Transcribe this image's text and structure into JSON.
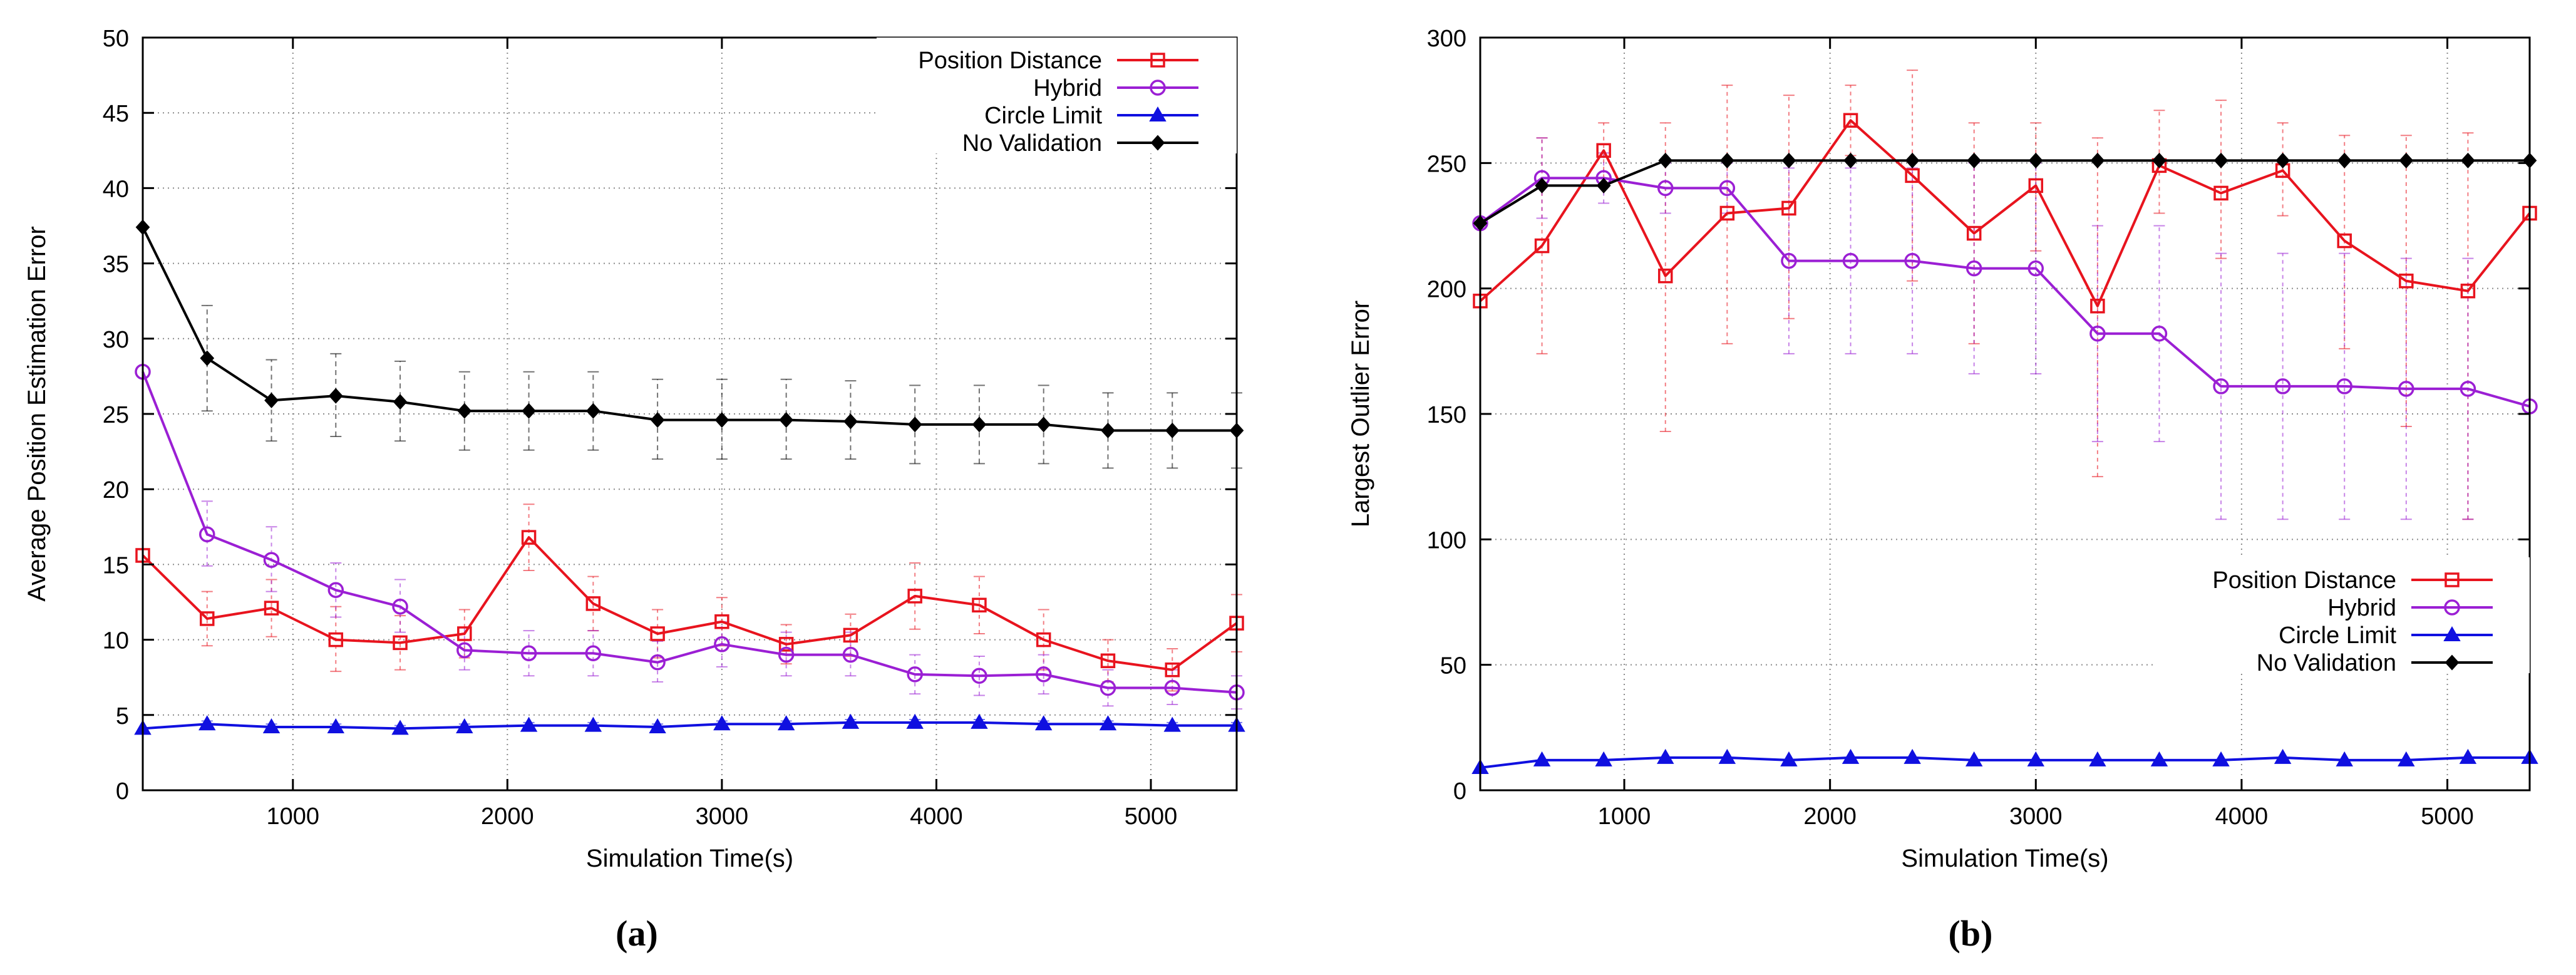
{
  "colors": {
    "position_distance": "#e8141e",
    "hybrid": "#9b1fd4",
    "circle_limit": "#1010e0",
    "no_validation": "#000000",
    "grid": "#8a8a8a"
  },
  "chart_data": [
    {
      "type": "line",
      "panel_label": "(a)",
      "xlabel": "Simulation Time(s)",
      "ylabel": "Average Position Estimation Error",
      "xlim": [
        300,
        5400
      ],
      "ylim": [
        0,
        50
      ],
      "xticks": [
        1000,
        2000,
        3000,
        4000,
        5000
      ],
      "yticks": [
        0,
        5,
        10,
        15,
        20,
        25,
        30,
        35,
        40,
        45,
        50
      ],
      "grid": true,
      "legend_position": "top-right",
      "x": [
        300,
        600,
        900,
        1200,
        1500,
        1800,
        2100,
        2400,
        2700,
        3000,
        3300,
        3600,
        3900,
        4200,
        4500,
        4800,
        5100,
        5400
      ],
      "series": [
        {
          "name": "Position Distance",
          "color_key": "position_distance",
          "marker": "square",
          "values": [
            15.6,
            11.4,
            12.1,
            10.0,
            9.8,
            10.4,
            16.8,
            12.4,
            10.4,
            11.2,
            9.7,
            10.3,
            12.9,
            12.3,
            10.0,
            8.6,
            8.0,
            11.1
          ],
          "err_low": [
            15.6,
            9.6,
            10.2,
            7.9,
            8.0,
            8.8,
            14.6,
            10.6,
            8.8,
            9.6,
            8.4,
            8.9,
            10.7,
            10.4,
            8.0,
            7.2,
            6.6,
            9.2
          ],
          "err_high": [
            15.6,
            13.2,
            14.0,
            12.2,
            11.6,
            12.0,
            19.0,
            14.2,
            12.0,
            12.8,
            11.0,
            11.7,
            15.1,
            14.2,
            12.0,
            10.0,
            9.4,
            13.0
          ]
        },
        {
          "name": "Hybrid",
          "color_key": "hybrid",
          "marker": "circle",
          "values": [
            27.8,
            17.0,
            15.3,
            13.3,
            12.2,
            9.3,
            9.1,
            9.1,
            8.5,
            9.7,
            9.0,
            9.0,
            7.7,
            7.6,
            7.7,
            6.8,
            6.8,
            6.5
          ],
          "err_low": [
            27.8,
            14.9,
            13.2,
            11.5,
            10.5,
            8.0,
            7.6,
            7.6,
            7.2,
            8.2,
            7.6,
            7.6,
            6.4,
            6.3,
            6.4,
            5.6,
            5.7,
            5.4
          ],
          "err_high": [
            27.8,
            19.2,
            17.5,
            15.1,
            14.0,
            10.8,
            10.6,
            10.6,
            9.9,
            11.2,
            10.5,
            10.5,
            9.0,
            8.9,
            9.0,
            8.0,
            8.0,
            7.6
          ]
        },
        {
          "name": "Circle Limit",
          "color_key": "circle_limit",
          "marker": "triangle",
          "values": [
            4.1,
            4.4,
            4.2,
            4.2,
            4.1,
            4.2,
            4.3,
            4.3,
            4.2,
            4.4,
            4.4,
            4.5,
            4.5,
            4.5,
            4.4,
            4.4,
            4.3,
            4.3
          ],
          "err_low": [
            4.1,
            4.2,
            4.0,
            4.0,
            3.9,
            4.0,
            4.1,
            4.1,
            4.0,
            4.2,
            4.2,
            4.3,
            4.3,
            4.3,
            4.2,
            4.2,
            4.1,
            4.1
          ],
          "err_high": [
            4.1,
            4.6,
            4.4,
            4.4,
            4.3,
            4.4,
            4.5,
            4.5,
            4.4,
            4.6,
            4.6,
            4.7,
            4.7,
            4.7,
            4.6,
            4.6,
            4.5,
            4.5
          ]
        },
        {
          "name": "No Validation",
          "color_key": "no_validation",
          "marker": "diamond",
          "values": [
            37.4,
            28.7,
            25.9,
            26.2,
            25.8,
            25.2,
            25.2,
            25.2,
            24.6,
            24.6,
            24.6,
            24.5,
            24.3,
            24.3,
            24.3,
            23.9,
            23.9,
            23.9
          ],
          "err_low": [
            37.4,
            25.2,
            23.2,
            23.5,
            23.2,
            22.6,
            22.6,
            22.6,
            22.0,
            22.0,
            22.0,
            22.0,
            21.7,
            21.7,
            21.7,
            21.4,
            21.4,
            21.4
          ],
          "err_high": [
            37.4,
            32.2,
            28.6,
            29.0,
            28.5,
            27.8,
            27.8,
            27.8,
            27.3,
            27.3,
            27.3,
            27.2,
            26.9,
            26.9,
            26.9,
            26.4,
            26.4,
            26.4
          ]
        }
      ]
    },
    {
      "type": "line",
      "panel_label": "(b)",
      "xlabel": "Simulation Time(s)",
      "ylabel": "Largest Outlier Error",
      "xlim": [
        300,
        5400
      ],
      "ylim": [
        0,
        300
      ],
      "xticks": [
        1000,
        2000,
        3000,
        4000,
        5000
      ],
      "yticks": [
        0,
        50,
        100,
        150,
        200,
        250,
        300
      ],
      "grid": true,
      "legend_position": "bottom-right",
      "x": [
        300,
        600,
        900,
        1200,
        1500,
        1800,
        2100,
        2400,
        2700,
        3000,
        3300,
        3600,
        3900,
        4200,
        4500,
        4800,
        5100,
        5400
      ],
      "series": [
        {
          "name": "Position Distance",
          "color_key": "position_distance",
          "marker": "square",
          "values": [
            195,
            217,
            255,
            205,
            230,
            232,
            267,
            245,
            222,
            241,
            193,
            249,
            238,
            247,
            219,
            203,
            199,
            230
          ],
          "err_low": [
            195,
            174,
            244,
            143,
            178,
            188,
            253,
            203,
            178,
            215,
            125,
            230,
            212,
            229,
            176,
            145,
            108,
            230
          ],
          "err_high": [
            195,
            260,
            266,
            266,
            281,
            277,
            281,
            287,
            266,
            266,
            260,
            271,
            275,
            266,
            261,
            261,
            262,
            230
          ]
        },
        {
          "name": "Hybrid",
          "color_key": "hybrid",
          "marker": "circle",
          "values": [
            226,
            244,
            244,
            240,
            240,
            211,
            211,
            211,
            208,
            208,
            182,
            182,
            161,
            161,
            161,
            160,
            160,
            153
          ],
          "err_low": [
            226,
            228,
            234,
            230,
            230,
            174,
            174,
            174,
            166,
            166,
            139,
            139,
            108,
            108,
            108,
            108,
            108,
            153
          ],
          "err_high": [
            226,
            260,
            254,
            250,
            250,
            248,
            248,
            248,
            250,
            250,
            225,
            225,
            214,
            214,
            214,
            212,
            212,
            153
          ]
        },
        {
          "name": "Circle Limit",
          "color_key": "circle_limit",
          "marker": "triangle",
          "values": [
            9,
            12,
            12,
            13,
            13,
            12,
            13,
            13,
            12,
            12,
            12,
            12,
            12,
            13,
            12,
            12,
            13,
            13
          ],
          "err_low": [
            9,
            12,
            12,
            13,
            13,
            12,
            13,
            13,
            12,
            12,
            12,
            12,
            12,
            13,
            12,
            12,
            13,
            13
          ],
          "err_high": [
            9,
            12,
            12,
            13,
            13,
            12,
            13,
            13,
            12,
            12,
            12,
            12,
            12,
            13,
            12,
            12,
            13,
            13
          ]
        },
        {
          "name": "No Validation",
          "color_key": "no_validation",
          "marker": "diamond",
          "values": [
            226,
            241,
            241,
            251,
            251,
            251,
            251,
            251,
            251,
            251,
            251,
            251,
            251,
            251,
            251,
            251,
            251,
            251
          ],
          "err_low": [
            226,
            241,
            241,
            251,
            251,
            251,
            251,
            251,
            251,
            251,
            251,
            251,
            251,
            251,
            251,
            251,
            251,
            251
          ],
          "err_high": [
            226,
            241,
            241,
            251,
            251,
            251,
            251,
            251,
            251,
            251,
            251,
            251,
            251,
            251,
            251,
            251,
            251,
            251
          ]
        }
      ]
    }
  ]
}
